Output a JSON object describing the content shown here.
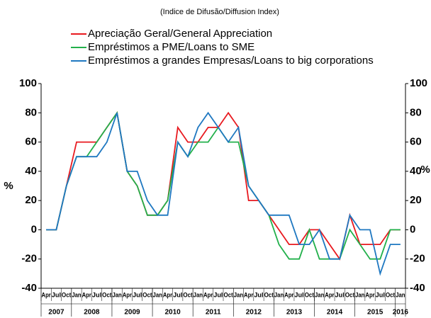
{
  "chart_data": {
    "type": "line",
    "title": "(Indice de Difusão/Diffusion Index)",
    "y_label": "%",
    "y2_label": "%",
    "categories": [
      "Apr",
      "Jul",
      "Oct",
      "Jan",
      "Apr",
      "Jul",
      "Oct",
      "Jan",
      "Apr",
      "Jul",
      "Oct",
      "Jan",
      "Apr",
      "Jul",
      "Oct",
      "Jan",
      "Apr",
      "Jul",
      "Oct",
      "Jan",
      "Apr",
      "Jul",
      "Oct",
      "Jan",
      "Apr",
      "Jul",
      "Oct",
      "Jan",
      "Apr",
      "Jul",
      "Oct",
      "Jan",
      "Apr",
      "Jul",
      "Oct",
      "Jan"
    ],
    "years": [
      "2007",
      "2008",
      "2009",
      "2010",
      "2011",
      "2012",
      "2013",
      "2014",
      "2015",
      "2016"
    ],
    "series": [
      {
        "name": "Apreciação Geral/General Appreciation",
        "color": "#e8191f",
        "values": [
          0,
          0,
          30,
          60,
          60,
          60,
          70,
          80,
          40,
          30,
          10,
          10,
          20,
          70,
          60,
          60,
          70,
          70,
          80,
          70,
          20,
          20,
          10,
          0,
          -10,
          -10,
          0,
          0,
          -10,
          -20,
          10,
          -10,
          -10,
          -10,
          0,
          0
        ]
      },
      {
        "name": "Empréstimos a PME/Loans to SME",
        "color": "#22b04b",
        "values": [
          0,
          0,
          30,
          50,
          50,
          60,
          70,
          80,
          40,
          30,
          10,
          10,
          20,
          60,
          50,
          60,
          60,
          70,
          60,
          60,
          30,
          20,
          10,
          -10,
          -20,
          -20,
          0,
          -20,
          -20,
          -20,
          0,
          -10,
          -20,
          -20,
          0,
          0
        ]
      },
      {
        "name": "Empréstimos a grandes Empresas/Loans to big corporations",
        "color": "#1f78c1",
        "values": [
          0,
          0,
          30,
          50,
          50,
          50,
          60,
          80,
          40,
          40,
          20,
          10,
          10,
          60,
          50,
          70,
          80,
          70,
          60,
          70,
          30,
          20,
          10,
          10,
          10,
          -10,
          -10,
          0,
          -20,
          -20,
          10,
          0,
          0,
          -30,
          -10,
          -10
        ]
      }
    ],
    "ylim": [
      -40,
      100
    ],
    "yticks": [
      -40,
      -20,
      0,
      20,
      40,
      60,
      80,
      100
    ],
    "y2lim": [
      -40,
      100
    ],
    "y2ticks": [
      -40,
      -20,
      0,
      20,
      40,
      60,
      80,
      100
    ]
  }
}
